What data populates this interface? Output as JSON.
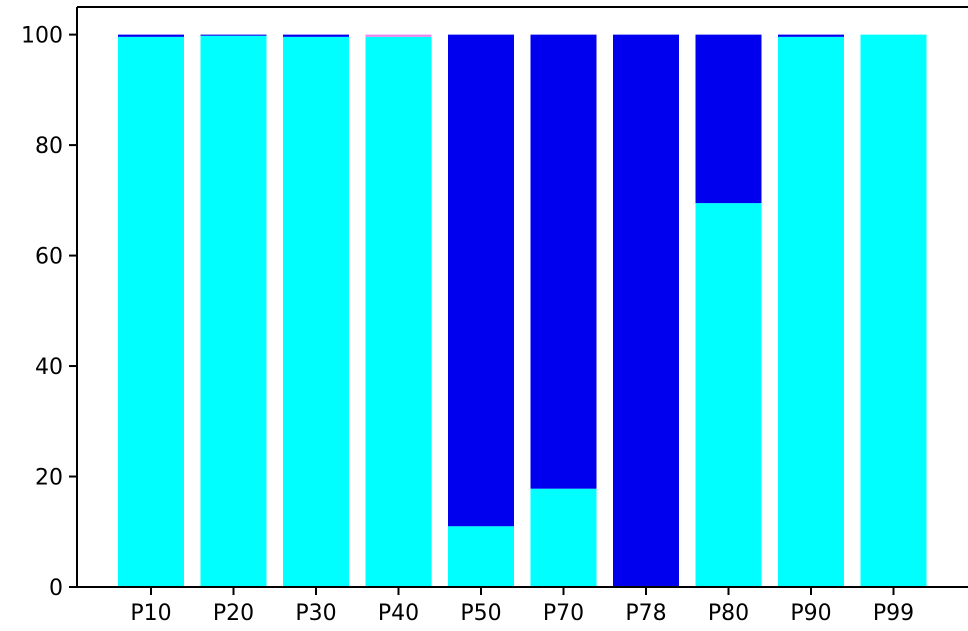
{
  "chart_data": {
    "type": "bar",
    "stacked": true,
    "categories": [
      "P10",
      "P20",
      "P30",
      "P40",
      "P50",
      "P70",
      "P78",
      "P80",
      "P90",
      "P99"
    ],
    "series": [
      {
        "color": "#00ffff",
        "values": [
          99.6,
          99.8,
          99.6,
          99.6,
          11.0,
          17.8,
          0.0,
          69.5,
          99.6,
          100.0
        ]
      },
      {
        "color": "#0000ee",
        "values": [
          0.4,
          0.2,
          0.4,
          0.0,
          89.0,
          82.2,
          100.0,
          30.5,
          0.4,
          0.0
        ]
      },
      {
        "color": "#ee82ee",
        "values": [
          0.0,
          0.0,
          0.0,
          0.4,
          0.0,
          0.0,
          0.0,
          0.0,
          0.0,
          0.0
        ]
      }
    ],
    "yticks": [
      "0",
      "20",
      "40",
      "60",
      "80",
      "100"
    ],
    "ylim": [
      0,
      105
    ],
    "grid": false,
    "legend": "none"
  }
}
